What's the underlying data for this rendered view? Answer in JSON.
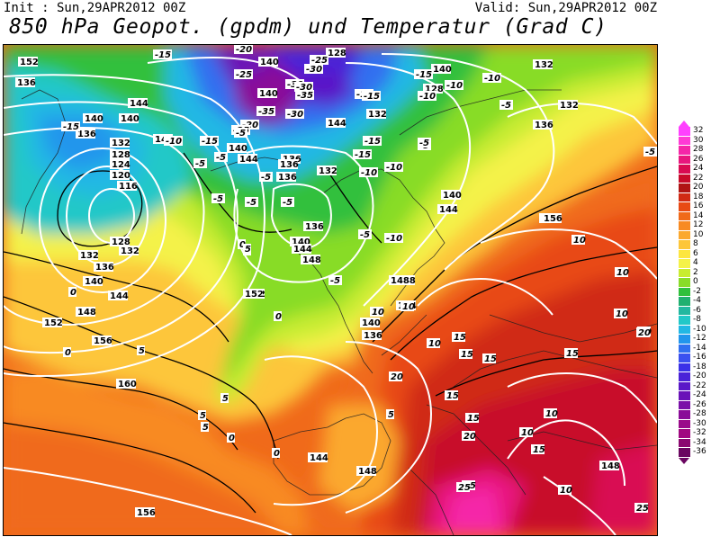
{
  "header": {
    "init": "Init : Sun,29APR2012 00Z",
    "valid": "Valid: Sun,29APR2012 00Z",
    "title": "850 hPa Geopot. (gpdm) und Temperatur (Grad C)"
  },
  "legend": {
    "values": [
      "32",
      "30",
      "28",
      "26",
      "24",
      "22",
      "20",
      "18",
      "16",
      "14",
      "12",
      "10",
      "8",
      "6",
      "4",
      "2",
      "0",
      "-2",
      "-4",
      "-6",
      "-8",
      "-10",
      "-12",
      "-14",
      "-16",
      "-18",
      "-20",
      "-22",
      "-24",
      "-26",
      "-28",
      "-30",
      "-32",
      "-34",
      "-36"
    ],
    "colors": [
      "#ff40ff",
      "#ff3ad6",
      "#f526a8",
      "#e8167e",
      "#d90a52",
      "#c80a2a",
      "#b01414",
      "#d02a14",
      "#e84a14",
      "#f06a1a",
      "#f88a22",
      "#fba82e",
      "#fdc63a",
      "#fde640",
      "#f4f248",
      "#c8ec30",
      "#88dc28",
      "#30c03c",
      "#20b070",
      "#22b8a0",
      "#22c8c8",
      "#22b8e4",
      "#2296ec",
      "#3070f0",
      "#3a50f0",
      "#3a30e8",
      "#4a22d8",
      "#5a18c8",
      "#6a12b8",
      "#7a10a8",
      "#8a0c98",
      "#9a0a8a",
      "#a00880",
      "#8a0870",
      "#6a0660"
    ]
  },
  "map": {
    "height_labels": [
      {
        "t": "152"
      },
      {
        "t": "136"
      },
      {
        "t": "144"
      },
      {
        "t": "140"
      },
      {
        "t": "140"
      },
      {
        "t": "140"
      },
      {
        "t": "128"
      },
      {
        "t": "140"
      },
      {
        "t": "128"
      },
      {
        "t": "132"
      },
      {
        "t": "140"
      },
      {
        "t": "144"
      },
      {
        "t": "136"
      },
      {
        "t": "132"
      },
      {
        "t": "136"
      },
      {
        "t": "128"
      },
      {
        "t": "124"
      },
      {
        "t": "120"
      },
      {
        "t": "116"
      },
      {
        "t": "128"
      },
      {
        "t": "132"
      },
      {
        "t": "136"
      },
      {
        "t": "140"
      },
      {
        "t": "144"
      },
      {
        "t": "148"
      },
      {
        "t": "152"
      },
      {
        "t": "156"
      },
      {
        "t": "140"
      },
      {
        "t": "144"
      },
      {
        "t": "136"
      },
      {
        "t": "136"
      },
      {
        "t": "144"
      },
      {
        "t": "132"
      },
      {
        "t": "132"
      },
      {
        "t": "132"
      },
      {
        "t": "136"
      },
      {
        "t": "140"
      },
      {
        "t": "144"
      },
      {
        "t": "148"
      },
      {
        "t": "152"
      },
      {
        "t": "132"
      },
      {
        "t": "136"
      },
      {
        "t": "140"
      },
      {
        "t": "144"
      },
      {
        "t": "148"
      },
      {
        "t": "152"
      },
      {
        "t": "156"
      },
      {
        "t": "148"
      },
      {
        "t": "140"
      },
      {
        "t": "136"
      },
      {
        "t": "144"
      },
      {
        "t": "160"
      },
      {
        "t": "144"
      },
      {
        "t": "148"
      },
      {
        "t": "156"
      },
      {
        "t": "148"
      },
      {
        "t": "156"
      }
    ],
    "temp_labels": [
      {
        "t": "-20"
      },
      {
        "t": "-15"
      },
      {
        "t": "-25"
      },
      {
        "t": "-30"
      },
      {
        "t": "-25"
      },
      {
        "t": "-30"
      },
      {
        "t": "-35"
      },
      {
        "t": "-30"
      },
      {
        "t": "-35"
      },
      {
        "t": "-30"
      },
      {
        "t": "-20"
      },
      {
        "t": "-25"
      },
      {
        "t": "-15"
      },
      {
        "t": "-15"
      },
      {
        "t": "-15"
      },
      {
        "t": "-10"
      },
      {
        "t": "-10"
      },
      {
        "t": "-5"
      },
      {
        "t": "-10"
      },
      {
        "t": "-15"
      },
      {
        "t": "-5"
      },
      {
        "t": "-5"
      },
      {
        "t": "-5"
      },
      {
        "t": "-10"
      },
      {
        "t": "-15"
      },
      {
        "t": "-10"
      },
      {
        "t": "-15"
      },
      {
        "t": "-5"
      },
      {
        "t": "-15"
      },
      {
        "t": "-10"
      },
      {
        "t": "-5"
      },
      {
        "t": "-5"
      },
      {
        "t": "-5"
      },
      {
        "t": "-5"
      },
      {
        "t": "-10"
      },
      {
        "t": "-5"
      },
      {
        "t": "-5"
      },
      {
        "t": "-5"
      },
      {
        "t": "0"
      },
      {
        "t": "0"
      },
      {
        "t": "0"
      },
      {
        "t": "-5"
      },
      {
        "t": "5"
      },
      {
        "t": "5"
      },
      {
        "t": "5"
      },
      {
        "t": "10"
      },
      {
        "t": "10"
      },
      {
        "t": "10"
      },
      {
        "t": "10"
      },
      {
        "t": "10"
      },
      {
        "t": "10"
      },
      {
        "t": "5"
      },
      {
        "t": "0"
      },
      {
        "t": "0"
      },
      {
        "t": "0"
      },
      {
        "t": "5"
      },
      {
        "t": "5"
      },
      {
        "t": "5"
      },
      {
        "t": "5"
      },
      {
        "t": "10"
      },
      {
        "t": "15"
      },
      {
        "t": "15"
      },
      {
        "t": "15"
      },
      {
        "t": "15"
      },
      {
        "t": "10"
      },
      {
        "t": "15"
      },
      {
        "t": "10"
      },
      {
        "t": "20"
      },
      {
        "t": "20"
      },
      {
        "t": "15"
      },
      {
        "t": "15"
      },
      {
        "t": "25"
      },
      {
        "t": "25"
      },
      {
        "t": "20"
      },
      {
        "t": "25"
      },
      {
        "t": "20"
      }
    ]
  }
}
